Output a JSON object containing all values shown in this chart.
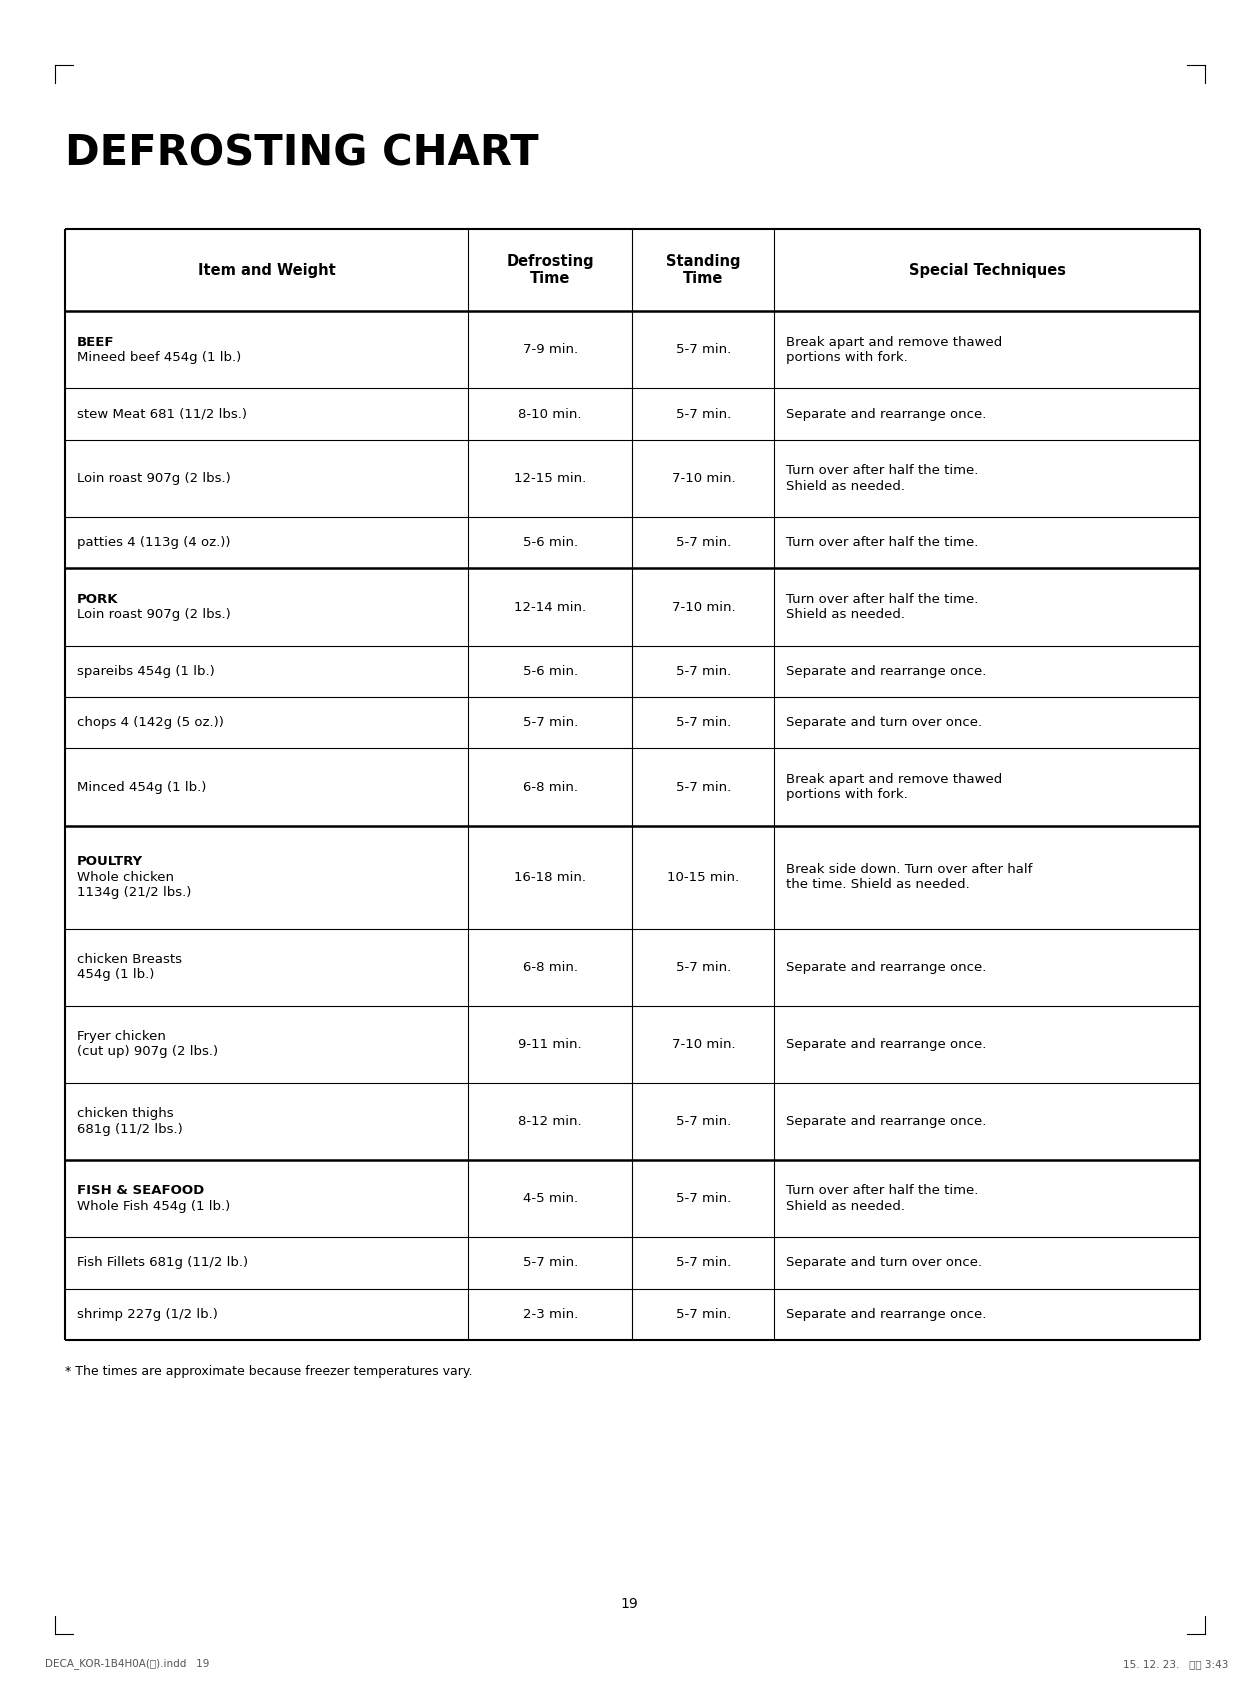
{
  "title": "DEFROSTING CHART",
  "footnote": "* The times are approximate because freezer temperatures vary.",
  "page_number": "19",
  "footer_left": "DECA_KOR-1B4H0A(영).indd   19",
  "footer_right": "15. 12. 23.   오후 3:43",
  "col_headers": [
    "Item and Weight",
    "Defrosting\nTime",
    "Standing\nTime",
    "Special Techniques"
  ],
  "rows": [
    {
      "item": "BEEF\nMineed beef 454g (1 lb.)",
      "bold_lines": 1,
      "defrost": "7-9 min.",
      "standing": "5-7 min.",
      "technique": "Break apart and remove thawed\nportions with fork.",
      "section_start": true
    },
    {
      "item": "stew Meat 681 (11/2 lbs.)",
      "bold_lines": 0,
      "defrost": "8-10 min.",
      "standing": "5-7 min.",
      "technique": "Separate and rearrange once.",
      "section_start": false
    },
    {
      "item": "Loin roast 907g (2 lbs.)",
      "bold_lines": 0,
      "defrost": "12-15 min.",
      "standing": "7-10 min.",
      "technique": "Turn over after half the time.\nShield as needed.",
      "section_start": false
    },
    {
      "item": "patties 4 (113g (4 oz.))",
      "bold_lines": 0,
      "defrost": "5-6 min.",
      "standing": "5-7 min.",
      "technique": "Turn over after half the time.",
      "section_start": false
    },
    {
      "item": "PORK\nLoin roast 907g (2 lbs.)",
      "bold_lines": 1,
      "defrost": "12-14 min.",
      "standing": "7-10 min.",
      "technique": "Turn over after half the time.\nShield as needed.",
      "section_start": true
    },
    {
      "item": "spareibs 454g (1 lb.)",
      "bold_lines": 0,
      "defrost": "5-6 min.",
      "standing": "5-7 min.",
      "technique": "Separate and rearrange once.",
      "section_start": false
    },
    {
      "item": "chops 4 (142g (5 oz.))",
      "bold_lines": 0,
      "defrost": "5-7 min.",
      "standing": "5-7 min.",
      "technique": "Separate and turn over once.",
      "section_start": false
    },
    {
      "item": "Minced 454g (1 lb.)",
      "bold_lines": 0,
      "defrost": "6-8 min.",
      "standing": "5-7 min.",
      "technique": "Break apart and remove thawed\nportions with fork.",
      "section_start": false
    },
    {
      "item": "POULTRY\nWhole chicken\n1134g (21/2 lbs.)",
      "bold_lines": 1,
      "defrost": "16-18 min.",
      "standing": "10-15 min.",
      "technique": "Break side down. Turn over after half\nthe time. Shield as needed.",
      "section_start": true
    },
    {
      "item": "chicken Breasts\n454g (1 lb.)",
      "bold_lines": 0,
      "defrost": "6-8 min.",
      "standing": "5-7 min.",
      "technique": "Separate and rearrange once.",
      "section_start": false
    },
    {
      "item": "Fryer chicken\n(cut up) 907g (2 lbs.)",
      "bold_lines": 0,
      "defrost": "9-11 min.",
      "standing": "7-10 min.",
      "technique": "Separate and rearrange once.",
      "section_start": false
    },
    {
      "item": "chicken thighs\n681g (11/2 lbs.)",
      "bold_lines": 0,
      "defrost": "8-12 min.",
      "standing": "5-7 min.",
      "technique": "Separate and rearrange once.",
      "section_start": false
    },
    {
      "item": "FISH & SEAFOOD\nWhole Fish 454g (1 lb.)",
      "bold_lines": 1,
      "defrost": "4-5 min.",
      "standing": "5-7 min.",
      "technique": "Turn over after half the time.\nShield as needed.",
      "section_start": true
    },
    {
      "item": "Fish Fillets 681g (11/2 lb.)",
      "bold_lines": 0,
      "defrost": "5-7 min.",
      "standing": "5-7 min.",
      "technique": "Separate and turn over once.",
      "section_start": false
    },
    {
      "item": "shrimp 227g (1/2 lb.)",
      "bold_lines": 0,
      "defrost": "2-3 min.",
      "standing": "5-7 min.",
      "technique": "Separate and rearrange once.",
      "section_start": false
    }
  ],
  "bg_color": "#ffffff",
  "line_color": "#000000",
  "title_fontsize": 30,
  "header_fontsize": 10.5,
  "cell_fontsize": 9.5,
  "footnote_fontsize": 9,
  "page_fontsize": 10
}
